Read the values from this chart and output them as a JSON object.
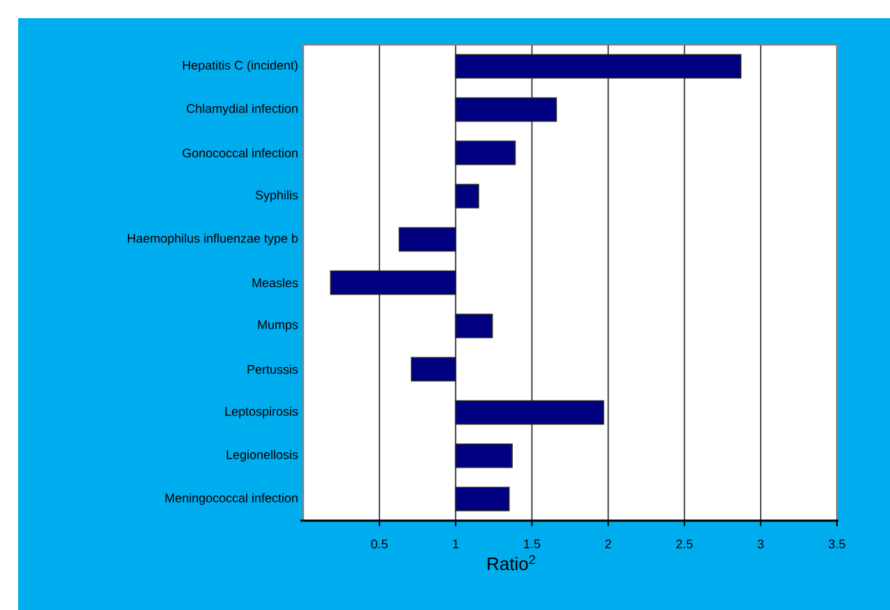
{
  "chart_data": {
    "type": "bar",
    "orientation": "horizontal",
    "categories": [
      "Hepatitis C (incident)",
      "Chlamydial infection",
      "Gonococcal infection",
      "Syphilis",
      "Haemophilus influenzae type b",
      "Measles",
      "Mumps",
      "Pertussis",
      "Leptospirosis",
      "Legionellosis",
      "Meningococcal infection"
    ],
    "base": [
      1,
      1,
      1,
      1,
      1,
      1,
      1,
      1,
      1,
      1,
      1
    ],
    "values": [
      1.87,
      0.66,
      0.39,
      0.15,
      -0.37,
      -0.82,
      0.24,
      -0.29,
      0.97,
      0.37,
      0.35
    ],
    "color": "#000080",
    "xlim": [
      0,
      3.5
    ],
    "xticks": [
      0.5,
      1,
      1.5,
      2,
      2.5,
      3,
      3.5
    ],
    "xlabel": "Ratio$^{2}$",
    "grid": "x"
  }
}
